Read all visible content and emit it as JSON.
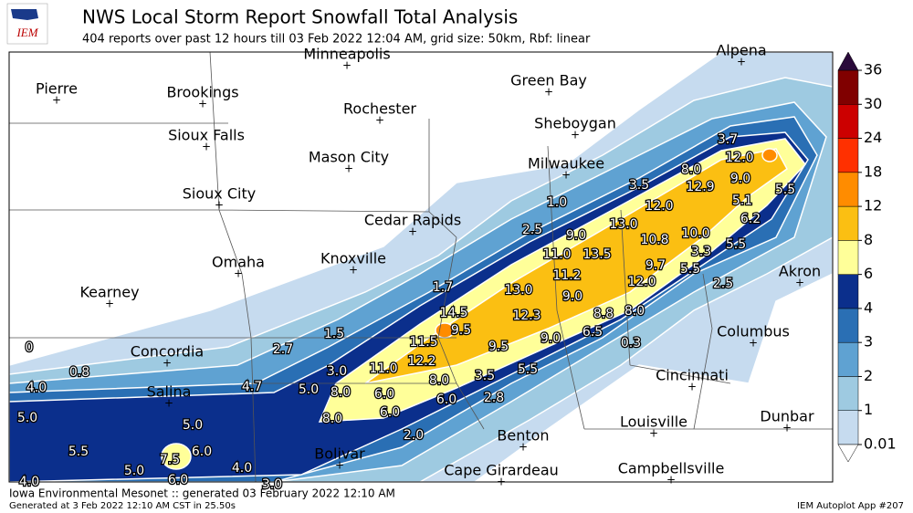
{
  "header": {
    "logo": "IEM",
    "title": "NWS Local Storm Report Snowfall Total Analysis",
    "subtitle": "404 reports over past 12 hours till 03 Feb 2022 12:04 AM, grid size: 50km, Rbf: linear"
  },
  "cities": [
    "Minneapolis",
    "Alpena",
    "Pierre",
    "Brookings",
    "Green Bay",
    "Rochester",
    "Sheboygan",
    "Sioux Falls",
    "Mason City",
    "Milwaukee",
    "Sioux City",
    "Cedar Rapids",
    "Omaha",
    "Knoxville",
    "Akron",
    "Kearney",
    "Columbus",
    "Concordia",
    "Cincinnati",
    "Salina",
    "Louisville",
    "Dunbar",
    "Benton",
    "Bolivar",
    "Cape Girardeau",
    "Campbellsville"
  ],
  "reports": [
    "3.7",
    "12.0",
    "8.0",
    "9.0",
    "3.5",
    "12.9",
    "5.5",
    "1.0",
    "5.1",
    "12.0",
    "13.0",
    "6.2",
    "2.5",
    "9.0",
    "10.0",
    "10.8",
    "5.5",
    "11.0",
    "13.5",
    "3.3",
    "9.7",
    "5.5",
    "11.2",
    "12.0",
    "2.5",
    "1.7",
    "13.0",
    "9.0",
    "14.5",
    "12.3",
    "8.8",
    "8.0",
    "9.5",
    "1.5",
    "6.5",
    "11.5",
    "9.0",
    "0.3",
    "9.5",
    "0",
    "2.7",
    "12.2",
    "0.8",
    "11.0",
    "3.0",
    "8.0",
    "3.5",
    "5.5",
    "4.0",
    "4.7",
    "5.0",
    "8.0",
    "6.0",
    "6.0",
    "2.8",
    "5.0",
    "8.0",
    "6.0",
    "5.0",
    "2.0",
    "5.5",
    "7.5",
    "6.0",
    "5.0",
    "4.0",
    "6.0",
    "4.0",
    "3.0"
  ],
  "legend": {
    "ticks": [
      0.01,
      1,
      2,
      3,
      4,
      6,
      8,
      12,
      18,
      24,
      30,
      36
    ],
    "colors": [
      "#c6dbef",
      "#9ecae1",
      "#5fa2d2",
      "#2a6fb4",
      "#0b2f8c",
      "#ffff99",
      "#fbbf12",
      "#ff8c00",
      "#ff3000",
      "#cc0000",
      "#800000"
    ],
    "over_color": "#2a0a3a"
  },
  "footer": {
    "left": "Iowa Environmental Mesonet :: generated 03 February 2022 12:10 AM",
    "generated": "Generated at 3 Feb 2022 12:10 AM CST in 25.50s",
    "right": "IEM Autoplot App #207"
  }
}
